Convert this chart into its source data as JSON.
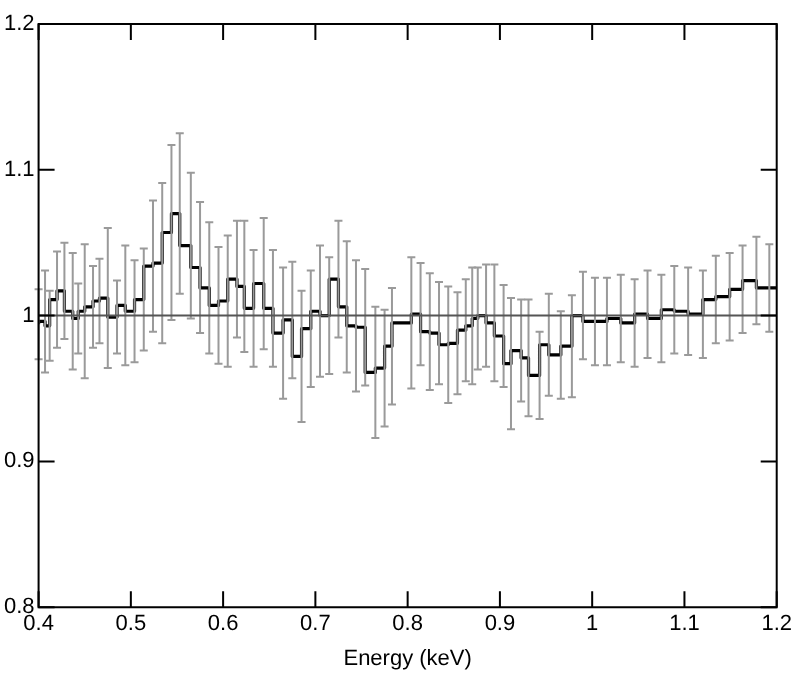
{
  "chart_data": {
    "type": "step",
    "xlabel": "Energy (keV)",
    "x": [
      0.4,
      0.407,
      0.412,
      0.42,
      0.428,
      0.437,
      0.443,
      0.45,
      0.459,
      0.466,
      0.475,
      0.485,
      0.494,
      0.504,
      0.514,
      0.524,
      0.534,
      0.544,
      0.553,
      0.565,
      0.575,
      0.585,
      0.595,
      0.605,
      0.615,
      0.623,
      0.633,
      0.644,
      0.654,
      0.665,
      0.675,
      0.685,
      0.695,
      0.705,
      0.715,
      0.725,
      0.734,
      0.744,
      0.754,
      0.765,
      0.775,
      0.783,
      0.804,
      0.814,
      0.824,
      0.834,
      0.844,
      0.854,
      0.863,
      0.87,
      0.876,
      0.885,
      0.894,
      0.904,
      0.912,
      0.923,
      0.931,
      0.943,
      0.953,
      0.966,
      0.978,
      0.99,
      1.003,
      1.016,
      1.031,
      1.046,
      1.06,
      1.075,
      1.089,
      1.104,
      1.12,
      1.134,
      1.149,
      1.163,
      1.178,
      1.192,
      1.2
    ],
    "series": [
      {
        "color": "#000000",
        "values": [
          0.994,
          0.996,
          0.993,
          1.011,
          1.017,
          1.003,
          0.998,
          1.003,
          1.006,
          1.01,
          1.012,
          0.999,
          1.007,
          1.003,
          1.011,
          1.034,
          1.036,
          1.057,
          1.07,
          1.048,
          1.033,
          1.019,
          1.007,
          1.01,
          1.025,
          1.02,
          1.005,
          1.022,
          1.005,
          0.988,
          0.997,
          0.972,
          0.991,
          1.003,
          1.0,
          1.025,
          1.006,
          0.993,
          0.992,
          0.961,
          0.964,
          0.979,
          0.995,
          1.001,
          0.989,
          0.988,
          0.98,
          0.981,
          0.99,
          0.993,
          0.998,
          1.0,
          0.995,
          0.986,
          0.967,
          0.976,
          0.971,
          0.959,
          0.98,
          0.973,
          0.979,
          1.0,
          0.996,
          0.996,
          0.998,
          0.995,
          1.001,
          0.998,
          1.004,
          1.003,
          1.001,
          1.011,
          1.013,
          1.018,
          1.024,
          1.019,
          1.019
        ],
        "errors": [
          0.024,
          0.035,
          0.024,
          0.033,
          0.033,
          0.04,
          0.024,
          0.046,
          0.028,
          0.029,
          0.048,
          0.025,
          0.041,
          0.035,
          0.035,
          0.045,
          0.055,
          0.06,
          0.055,
          0.05,
          0.045,
          0.045,
          0.04,
          0.045,
          0.04,
          0.045,
          0.04,
          0.045,
          0.04,
          0.045,
          0.04,
          0.045,
          0.04,
          0.045,
          0.04,
          0.04,
          0.045,
          0.045,
          0.04,
          0.045,
          0.04,
          0.04,
          0.045,
          0.035,
          0.04,
          0.035,
          0.04,
          0.035,
          0.035,
          0.04,
          0.035,
          0.035,
          0.04,
          0.035,
          0.045,
          0.035,
          0.04,
          0.03,
          0.035,
          0.03,
          0.035,
          0.03,
          0.03,
          0.03,
          0.03,
          0.03,
          0.03,
          0.03,
          0.03,
          0.03,
          0.03,
          0.03,
          0.03,
          0.03,
          0.03,
          0.03,
          null
        ]
      }
    ],
    "xlim": [
      0.4,
      1.2
    ],
    "ylim": [
      0.8,
      1.2
    ],
    "xticks": [
      0.4,
      0.5,
      0.6,
      0.7,
      0.8,
      0.9,
      1,
      1.1,
      1.2
    ],
    "yticks": [
      0.8,
      0.9,
      1,
      1.1,
      1.2
    ],
    "marker": "none",
    "ref_lines": [
      {
        "axis": "y",
        "value": 1,
        "color": "#555555",
        "line_style": "solid"
      }
    ]
  }
}
